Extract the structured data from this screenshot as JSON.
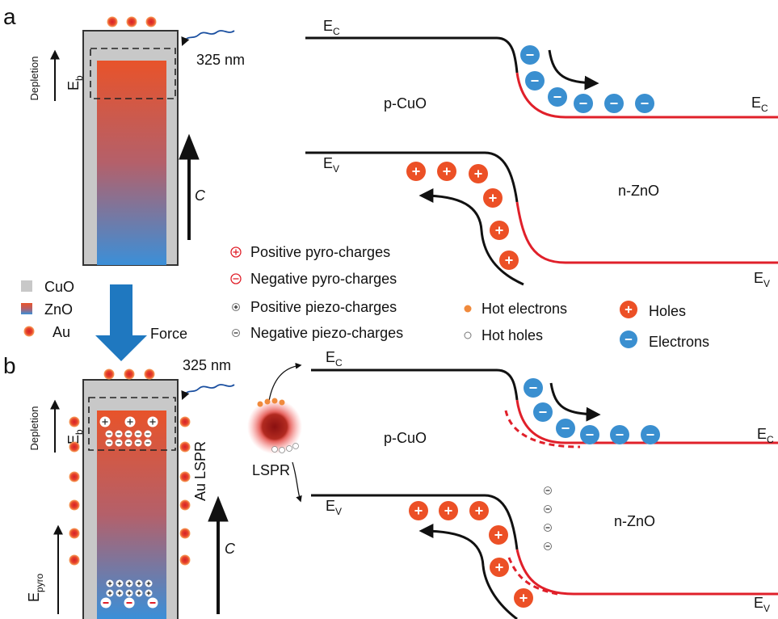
{
  "panel_a": {
    "label": "a",
    "depletion": "Depletion",
    "field": {
      "base": "E",
      "sub": "b"
    },
    "wavelength": "325 nm",
    "axis": "C",
    "bands": {
      "ec_left": {
        "base": "E",
        "sub": "C"
      },
      "ec_right": {
        "base": "E",
        "sub": "C"
      },
      "ev_left": {
        "base": "E",
        "sub": "V"
      },
      "ev_right": {
        "base": "E",
        "sub": "V"
      },
      "p_side": "p-CuO",
      "n_side": "n-ZnO"
    }
  },
  "legend": {
    "materials": [
      "CuO",
      "ZnO",
      "Au"
    ],
    "force": "Force",
    "charges": [
      "Positive pyro-charges",
      "Negative pyro-charges",
      "Positive piezo-charges",
      "Negative piezo-charges"
    ],
    "carriers": [
      "Hot electrons",
      "Hot holes",
      "Holes",
      "Electrons"
    ]
  },
  "panel_b": {
    "label": "b",
    "depletion": "Depletion",
    "field": {
      "base": "E",
      "sub": "b"
    },
    "pyro_field": {
      "base": "E",
      "sub": "pyro"
    },
    "wavelength": "325 nm",
    "axis": "C",
    "au_lspr": "Au LSPR",
    "lspr": "LSPR",
    "bands": {
      "ec_left": {
        "base": "E",
        "sub": "C"
      },
      "ec_right": {
        "base": "E",
        "sub": "C"
      },
      "ev_left": {
        "base": "E",
        "sub": "V"
      },
      "ev_right": {
        "base": "E",
        "sub": "V"
      },
      "p_side": "p-CuO",
      "n_side": "n-ZnO"
    }
  }
}
